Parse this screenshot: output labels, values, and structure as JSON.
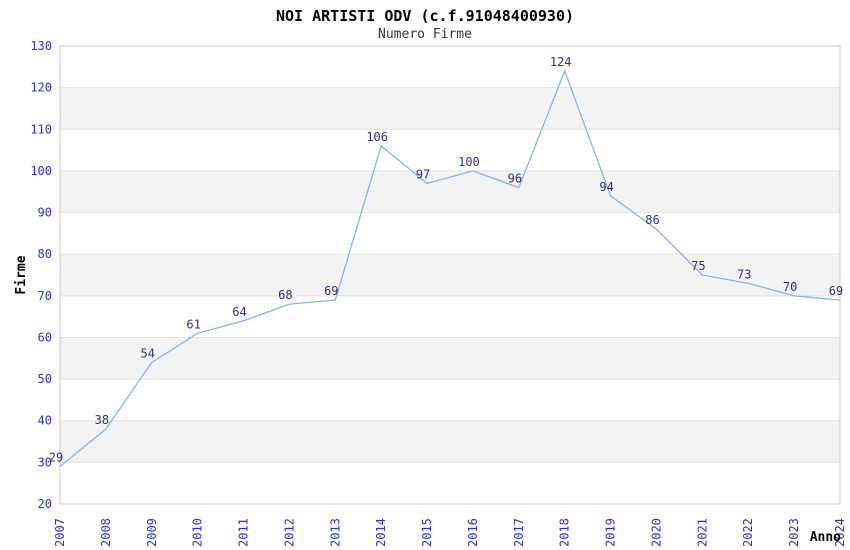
{
  "chart_data": {
    "type": "line",
    "title": "NOI ARTISTI ODV (c.f.91048400930)",
    "subtitle": "Numero Firme",
    "xlabel": "Anno",
    "ylabel": "Firme",
    "categories": [
      "2007",
      "2008",
      "2009",
      "2010",
      "2011",
      "2012",
      "2013",
      "2014",
      "2015",
      "2016",
      "2017",
      "2018",
      "2019",
      "2020",
      "2021",
      "2022",
      "2023",
      "2024"
    ],
    "values": [
      29,
      38,
      54,
      61,
      64,
      68,
      69,
      106,
      97,
      100,
      96,
      124,
      94,
      86,
      75,
      73,
      70,
      69
    ],
    "ylim": [
      20,
      130
    ],
    "ytick_step": 10,
    "grid": true,
    "banded_background": true,
    "legend": "none",
    "data_labels_visible": true,
    "x_tick_rotation": -90,
    "colors": {
      "line": "#86b4e6",
      "tick_labels": "#2e2ed0",
      "data_labels": "#30307a",
      "band": "#f3f3f3",
      "gridline": "#e2e2e2",
      "plot_border": "#c9c9c9",
      "title": "#000000",
      "subtitle": "#333333",
      "axis_titles": "#000000",
      "background": "#ffffff"
    }
  }
}
